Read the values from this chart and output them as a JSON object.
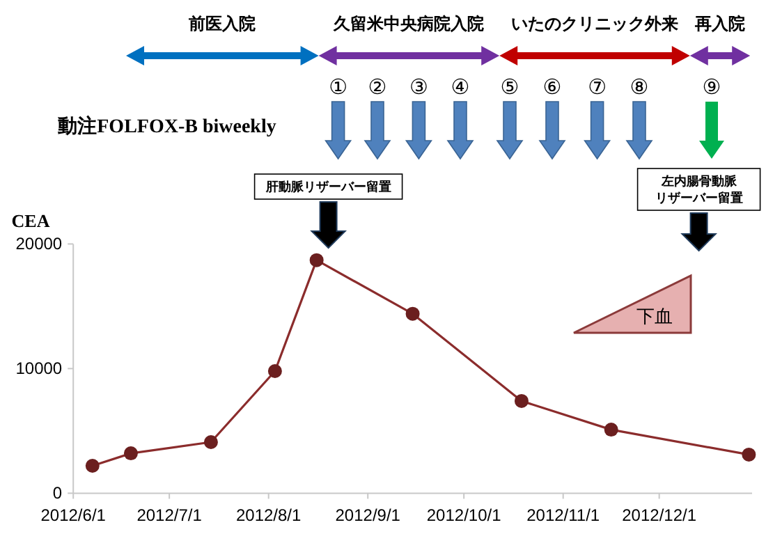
{
  "chart_data": {
    "type": "line",
    "ylabel": "CEA",
    "x": [
      "2012-06-07",
      "2012-06-19",
      "2012-07-14",
      "2012-08-03",
      "2012-08-16",
      "2012-09-15",
      "2012-10-19",
      "2012-11-16",
      "2012-12-29"
    ],
    "series": [
      {
        "color": "#8b2c2c",
        "values": [
          2200,
          3200,
          4100,
          9800,
          18700,
          14400,
          7400,
          5100,
          3100
        ]
      }
    ],
    "marker": "circle",
    "xlim": [
      "2012-06-01",
      "2012-12-30"
    ],
    "xticks": [
      {
        "value": "2012-06-01",
        "label": "2012/6/1"
      },
      {
        "value": "2012-07-01",
        "label": "2012/7/1"
      },
      {
        "value": "2012-08-01",
        "label": "2012/8/1"
      },
      {
        "value": "2012-09-01",
        "label": "2012/9/1"
      },
      {
        "value": "2012-10-01",
        "label": "2012/10/1"
      },
      {
        "value": "2012-11-01",
        "label": "2012/11/1"
      },
      {
        "value": "2012-12-01",
        "label": "2012/12/1"
      }
    ],
    "ylim": [
      0,
      20000
    ],
    "yticks": [
      0,
      10000,
      20000
    ],
    "annotations": [
      "前医入院",
      "久留米中央病院入院",
      "いたのクリニック外来",
      "再入院",
      "動注FOLFOX-B  biweekly",
      "①",
      "②",
      "③",
      "④",
      "⑤",
      "⑥",
      "⑦",
      "⑧",
      "⑨",
      "肝動脈リザーバー留置",
      "左内腸骨動脈",
      "リザーバー留置",
      "下血"
    ]
  }
}
